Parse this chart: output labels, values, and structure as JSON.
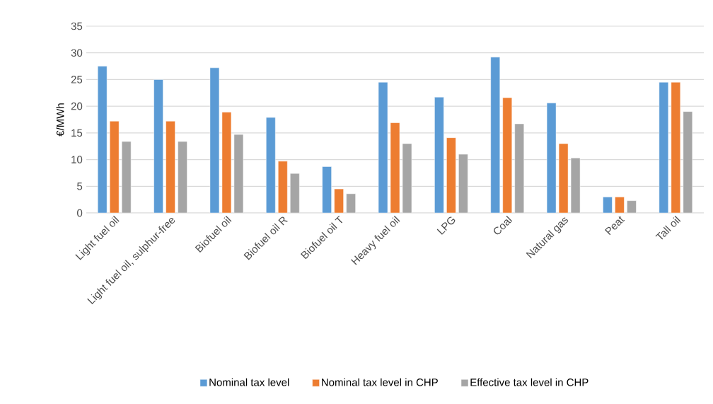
{
  "chart_data": {
    "type": "bar",
    "ylabel": "€/MWh",
    "categories": [
      "Light fuel oil",
      "Light fuel oil, sulphur-free",
      "Biofuel oil",
      "Biofuel oil R",
      "Biofuel oil T",
      "Heavy fuel oil",
      "LPG",
      "Coal",
      "Natural gas",
      "Peat",
      "Tall oil"
    ],
    "series": [
      {
        "name": "Nominal tax level",
        "color": "#5b9bd5",
        "values": [
          27.5,
          25.0,
          27.2,
          17.9,
          8.7,
          24.5,
          21.7,
          29.2,
          20.6,
          3.0,
          24.5
        ]
      },
      {
        "name": "Nominal tax level in CHP",
        "color": "#ed7d31",
        "values": [
          17.2,
          17.2,
          18.9,
          9.7,
          4.5,
          16.9,
          14.1,
          21.6,
          13.0,
          3.0,
          24.5
        ]
      },
      {
        "name": "Effective tax level in CHP",
        "color": "#a5a5a5",
        "values": [
          13.4,
          13.4,
          14.7,
          7.4,
          3.6,
          13.0,
          11.0,
          16.7,
          10.3,
          2.3,
          19.0
        ]
      }
    ],
    "ylim": [
      0,
      35
    ],
    "yticks": [
      0,
      5,
      10,
      15,
      20,
      25,
      30,
      35
    ],
    "grid": "y",
    "legend": "bottom"
  }
}
